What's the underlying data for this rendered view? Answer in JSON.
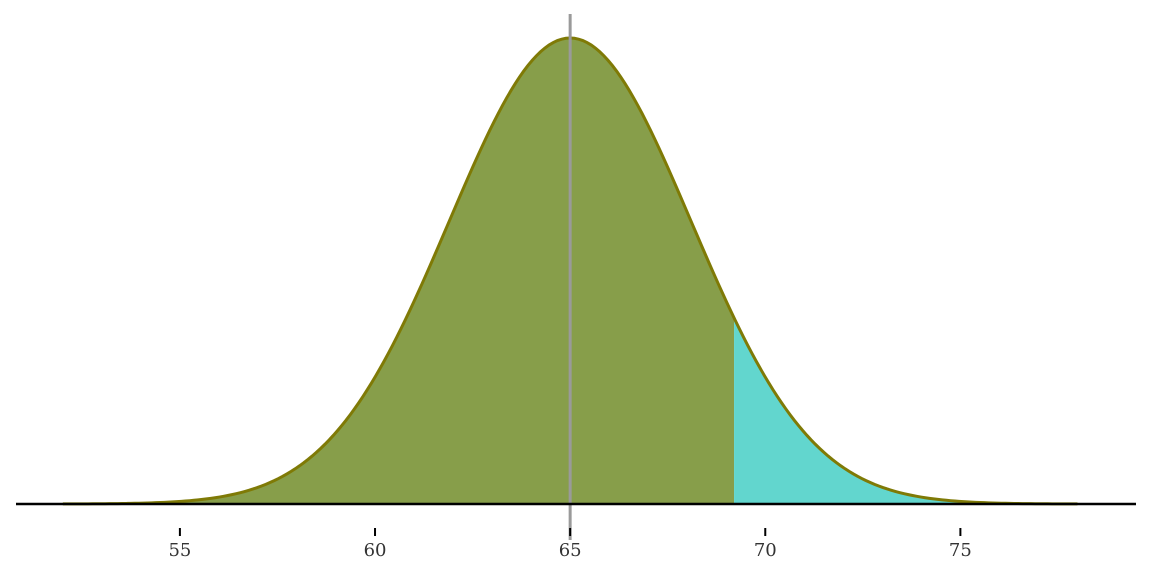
{
  "chart_data": {
    "type": "area",
    "title": "",
    "xlabel": "",
    "ylabel": "",
    "distribution": {
      "kind": "normal",
      "mean": 65,
      "sd": 3.1
    },
    "x_range": [
      52,
      78
    ],
    "xlim": [
      50.8,
      79.5
    ],
    "x_ticks": [
      "55",
      "60",
      "65",
      "70",
      "75"
    ],
    "x_tick_values": [
      55,
      60,
      65,
      70,
      75
    ],
    "mean_line_x": 65,
    "shaded_regions": [
      {
        "from": 52,
        "to": 69.2,
        "color": "#879e4a"
      },
      {
        "from": 69.2,
        "to": 78,
        "color": "#62d6ce"
      }
    ],
    "curve_color": "#7f7a06",
    "mean_line_color": "#9a9a9a",
    "axis_color": "#000000",
    "grid": false,
    "legend": "none"
  }
}
